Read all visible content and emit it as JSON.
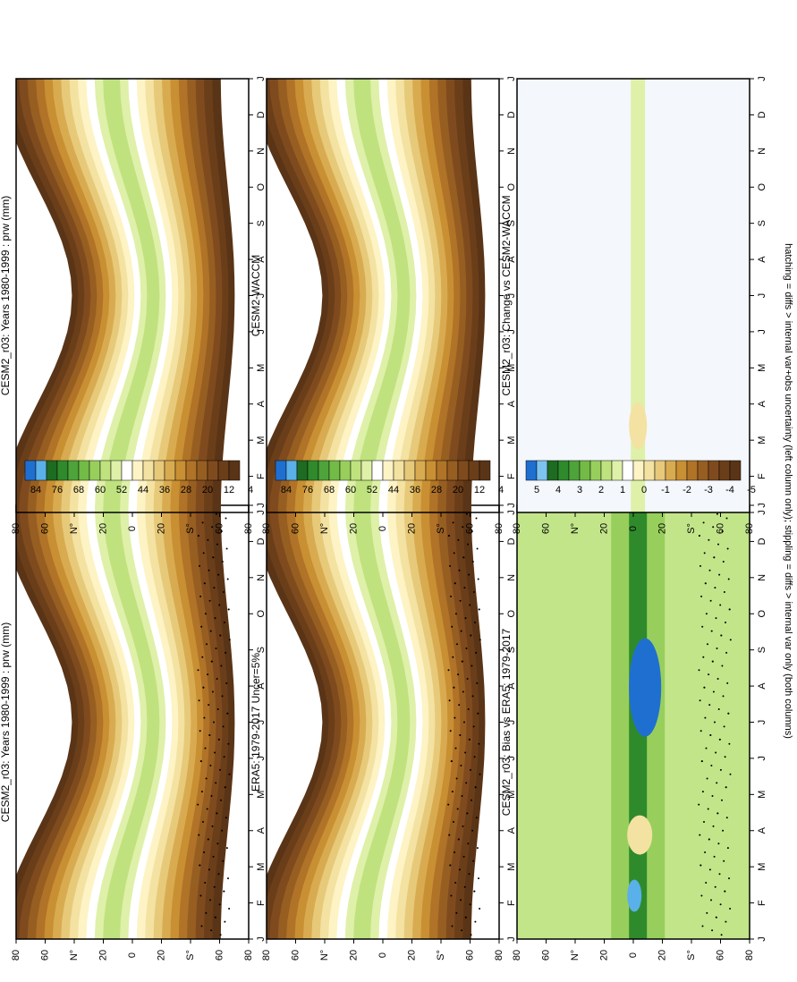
{
  "figure": {
    "footnote": "hatching = diffs > internal var+obs uncertainty (left column only); stippling = diffs > internal var only (both columns)"
  },
  "axes": {
    "month_ticks": [
      "J",
      "F",
      "M",
      "A",
      "M",
      "J",
      "J",
      "A",
      "S",
      "O",
      "N",
      "D",
      "J"
    ],
    "lat_ticks": [
      "80",
      "60",
      "N°",
      "20",
      "0",
      "20",
      "S°",
      "60",
      "80"
    ]
  },
  "colorbars": {
    "abs": {
      "labels": [
        "84",
        "76",
        "68",
        "60",
        "52",
        "44",
        "36",
        "28",
        "20",
        "12",
        "4"
      ],
      "colors": [
        "#1f6fd1",
        "#5ab0e8",
        "#1e6b22",
        "#2f8a2c",
        "#4ea33a",
        "#72bb47",
        "#98cf5c",
        "#bfe27e",
        "#dff0a9",
        "#ffffff",
        "#fdf3c4",
        "#f3e2a1",
        "#e7c97a",
        "#d9ab50",
        "#c98f33",
        "#b07327",
        "#975e22",
        "#7f4b1e",
        "#6b3e1a",
        "#5a3416"
      ]
    },
    "diff": {
      "labels": [
        "5",
        "4",
        "3",
        "2",
        "1",
        "0",
        "-1",
        "-2",
        "-3",
        "-4",
        "-5"
      ],
      "colors": [
        "#1f6fd1",
        "#7cc4ef",
        "#1e6b22",
        "#2f8a2c",
        "#4ea33a",
        "#72bb47",
        "#98cf5c",
        "#bfe27e",
        "#dff0a9",
        "#ffffff",
        "#fdf3c4",
        "#f3e2a1",
        "#e7c97a",
        "#d9ab50",
        "#c98f33",
        "#b07327",
        "#975e22",
        "#7f4b1e",
        "#6b3e1a",
        "#5a3416"
      ]
    }
  },
  "chart_data": [
    {
      "type": "heatmap",
      "id": "model-left",
      "title": "CESM2_r03: Years 1980-1999 : prw (mm)",
      "x": "month",
      "y": "latitude",
      "ylim": [
        -90,
        90
      ],
      "colorbar": "abs",
      "stippling": true,
      "hatching": true
    },
    {
      "type": "heatmap",
      "id": "model-right",
      "title": "CESM2_r03: Years 1980-1999 : prw (mm)",
      "x": "month",
      "y": "latitude",
      "ylim": [
        -90,
        90
      ],
      "colorbar": "abs"
    },
    {
      "type": "heatmap",
      "id": "obs",
      "title": "ERA5: 1979-2017 Uncer=5%",
      "x": "month",
      "y": "latitude",
      "ylim": [
        -90,
        90
      ],
      "colorbar": "abs",
      "stippling": true
    },
    {
      "type": "heatmap",
      "id": "ref",
      "title": "CESM2-WACCM",
      "x": "month",
      "y": "latitude",
      "ylim": [
        -90,
        90
      ],
      "colorbar": "abs"
    },
    {
      "type": "heatmap",
      "id": "bias",
      "title": "CESM2_r03: Bias vs ERA5: 1979-2017",
      "x": "month",
      "y": "latitude",
      "ylim": [
        -90,
        90
      ],
      "colorbar": "diff",
      "stippling": true
    },
    {
      "type": "heatmap",
      "id": "change",
      "title": "CESM2_r03: Change vs CESM2-WACCM",
      "x": "month",
      "y": "latitude",
      "ylim": [
        -90,
        90
      ],
      "colorbar": "diff"
    }
  ]
}
